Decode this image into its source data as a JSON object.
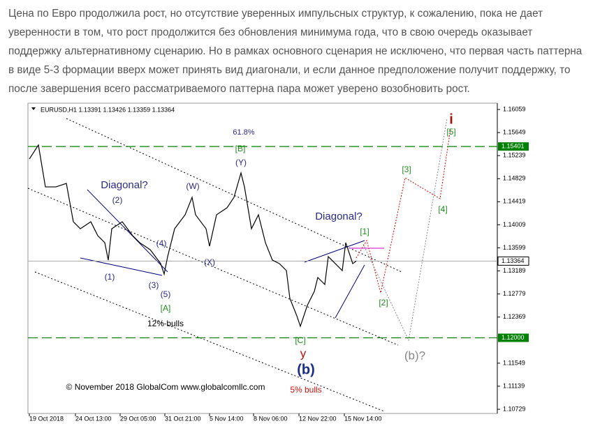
{
  "text": "Цена по Евро продолжила рост, но отсутствие уверенных импульсных структур, к сожалению, пока не дает уверенности в том, что рост продолжится без обновления минимума года, что в свою очередь оказывает поддержку альтернативному сценарию. Но в рамках основного сценария не исключено, что первая часть паттерна в виде 5-3 формации вверх может принять вид диагонали, и если данное предположение получит поддержку, то после завершения всего рассматриваемого паттерна пара может уверено возобновить рост.",
  "chart_data": {
    "type": "line",
    "title": "EURUSD,H1 1.13391 1.13426 1.13359 1.13364",
    "color": "#000000",
    "x": [
      0,
      13,
      18,
      23,
      38,
      53,
      63,
      73,
      88,
      98,
      108,
      113,
      118,
      133,
      148,
      158,
      173,
      188,
      193,
      198,
      208,
      223,
      233,
      238,
      253,
      258,
      268,
      283,
      293,
      303,
      308,
      318,
      328,
      338,
      348,
      358,
      368,
      373,
      383,
      388,
      398,
      408,
      413,
      423,
      428,
      438,
      448,
      453,
      463,
      468
    ],
    "values": [
      1.15179,
      1.15427,
      1.15055,
      1.14683,
      1.14683,
      1.14745,
      1.14063,
      1.13939,
      1.14063,
      1.13815,
      1.13691,
      1.13381,
      1.13939,
      1.14063,
      1.13815,
      1.13691,
      1.13567,
      1.13319,
      1.13134,
      1.13443,
      1.13939,
      1.14187,
      1.14497,
      1.14187,
      1.13939,
      1.13629,
      1.14187,
      1.14311,
      1.14497,
      1.14931,
      1.14683,
      1.13939,
      1.14187,
      1.13691,
      1.13381,
      1.13319,
      1.13195,
      1.127,
      1.1239,
      1.12204,
      1.12576,
      1.12824,
      1.13072,
      1.12948,
      1.13443,
      1.13319,
      1.13195,
      1.13691,
      1.13319,
      1.13364
    ],
    "xlim": [
      0,
      670
    ],
    "ylim": [
      1.10655,
      1.16171
    ],
    "xticks": [
      {
        "value": 0,
        "label": "19 Oct 2018"
      },
      {
        "value": 66,
        "label": "24 Oct 13:00"
      },
      {
        "value": 130,
        "label": "29 Oct 05:00"
      },
      {
        "value": 194,
        "label": "31 Oct 21:00"
      },
      {
        "value": 258,
        "label": "5 Nov 14:00"
      },
      {
        "value": 321,
        "label": "8 Nov 06:00"
      },
      {
        "value": 386,
        "label": "12 Nov 22:00"
      },
      {
        "value": 451,
        "label": "15 Nov 14:00"
      }
    ],
    "yticks": [
      1.16059,
      1.15649,
      1.15239,
      1.14829,
      1.14419,
      1.14009,
      1.13599,
      1.13189,
      1.12779,
      1.12369,
      1.11549,
      1.11139,
      1.10729
    ],
    "levels": [
      {
        "value": 1.15401,
        "label": "1.15401",
        "color": "#008000"
      },
      {
        "value": 1.13364,
        "label": "1.13364",
        "color": "#a0a0a0"
      },
      {
        "value": 1.12,
        "label": "1.12000",
        "color": "#008000"
      }
    ],
    "annotations": [
      "61.8%",
      "[B]",
      "(Y)",
      "Diagonal?",
      "(W)",
      "(2)",
      "(4)",
      "(1)",
      "(3)",
      "(5)",
      "(X)",
      "[A]",
      "12% bulls",
      "Diagonal?",
      "[1]",
      "[2]",
      "[3]",
      "[4]",
      "[5]",
      "i",
      "[C]",
      "y",
      "(b)",
      "(b)?",
      "5% bulls"
    ],
    "copyright": "© November 2018 GlobalCom www.globalcomllc.com"
  }
}
